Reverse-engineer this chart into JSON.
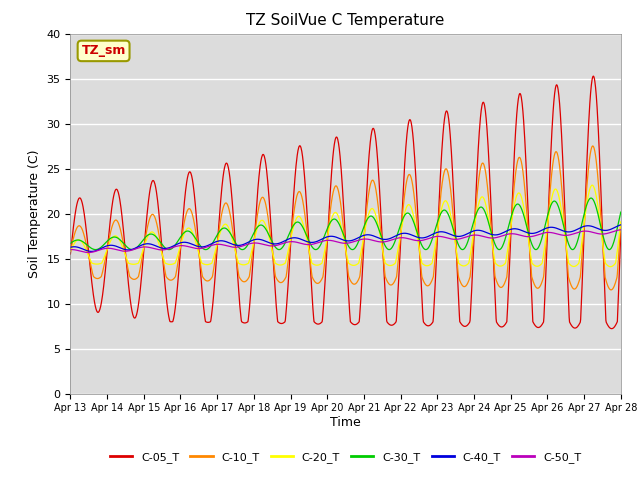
{
  "title": "TZ SoilVue C Temperature",
  "xlabel": "Time",
  "ylabel": "Soil Temperature (C)",
  "ylim": [
    0,
    40
  ],
  "yticks": [
    0,
    5,
    10,
    15,
    20,
    25,
    30,
    35,
    40
  ],
  "xtick_labels": [
    "Apr 13",
    "Apr 14",
    "Apr 15",
    "Apr 16",
    "Apr 17",
    "Apr 18",
    "Apr 19",
    "Apr 20",
    "Apr 21",
    "Apr 22",
    "Apr 23",
    "Apr 24",
    "Apr 25",
    "Apr 26",
    "Apr 27",
    "Apr 28"
  ],
  "legend_label": "TZ_sm",
  "series_names": [
    "C-05_T",
    "C-10_T",
    "C-20_T",
    "C-30_T",
    "C-40_T",
    "C-50_T"
  ],
  "series_colors": [
    "#dd0000",
    "#ff8800",
    "#ffff00",
    "#00cc00",
    "#0000dd",
    "#bb00bb"
  ],
  "background_color": "#dcdcdc",
  "plot_bg_color": "#dcdcdc",
  "n_days": 15,
  "samples_per_day": 96
}
